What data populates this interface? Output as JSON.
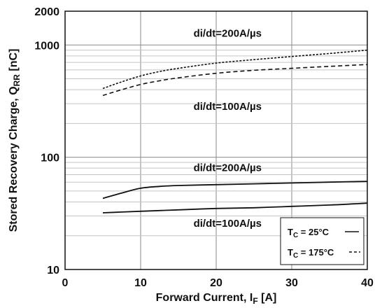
{
  "chart_data": {
    "type": "line",
    "xlabel": "Forward Current, I",
    "xlabel_sub": "F",
    "xlabel_unit": " [A]",
    "ylabel": "Stored Recovery Charge, Q",
    "ylabel_sub": "RR",
    "ylabel_unit": " [nC]",
    "xlim": [
      0,
      40
    ],
    "ylim": [
      10,
      2000
    ],
    "yscale": "log",
    "grid": true,
    "x_ticks": [
      "0",
      "10",
      "20",
      "30",
      "40"
    ],
    "y_ticks": [
      "10",
      "100",
      "1000",
      "2000"
    ],
    "legend_position": "bottom-right",
    "legend": [
      {
        "label_main": "T",
        "label_sub": "C",
        "label_rest": " = 25°C",
        "style": "solid"
      },
      {
        "label_main": "T",
        "label_sub": "C",
        "label_rest": " = 175°C",
        "style": "dashed"
      }
    ],
    "series": [
      {
        "annotation": "di/dt=200A/µs",
        "temperature": "175°C",
        "style": "dotted",
        "x": [
          5,
          7.5,
          10,
          12.5,
          15,
          20,
          25,
          30,
          35,
          40
        ],
        "y": [
          410,
          470,
          530,
          580,
          620,
          690,
          740,
          790,
          840,
          900
        ]
      },
      {
        "annotation": "di/dt=100A/µs",
        "temperature": "175°C",
        "style": "dashed",
        "x": [
          5,
          7.5,
          10,
          12.5,
          15,
          20,
          25,
          30,
          35,
          40
        ],
        "y": [
          355,
          400,
          445,
          480,
          510,
          560,
          595,
          620,
          645,
          670
        ]
      },
      {
        "annotation": "di/dt=200A/µs",
        "temperature": "25°C",
        "style": "solid",
        "x": [
          5,
          7.5,
          10,
          12.5,
          15,
          20,
          25,
          30,
          35,
          40
        ],
        "y": [
          43,
          48,
          53,
          55,
          56,
          57,
          58,
          59,
          60,
          61
        ]
      },
      {
        "annotation": "di/dt=100A/µs",
        "temperature": "25°C",
        "style": "solid",
        "x": [
          5,
          7.5,
          10,
          12.5,
          15,
          20,
          25,
          30,
          35,
          40
        ],
        "y": [
          32,
          32.5,
          33,
          33.5,
          34,
          35,
          35.5,
          36.5,
          37.5,
          39
        ]
      }
    ]
  }
}
